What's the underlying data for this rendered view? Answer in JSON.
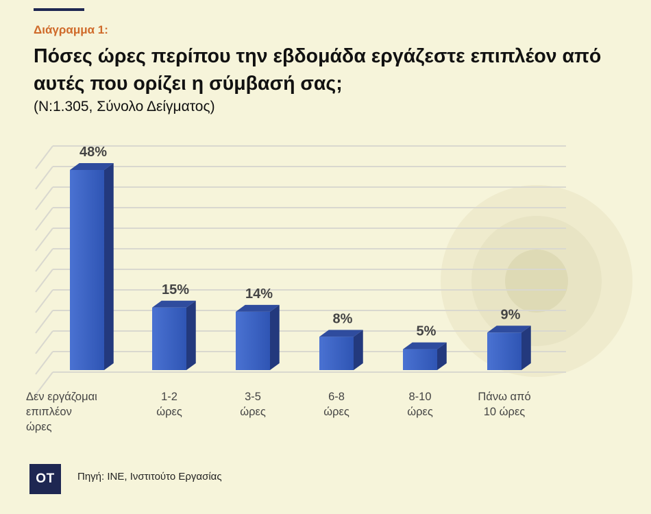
{
  "header": {
    "kicker": "Διάγραμμα 1:",
    "title": "Πόσες ώρες περίπου την εβδομάδα εργάζεστε επιπλέον από αυτές που ορίζει η σύμβασή σας;",
    "subtitle": "(N:1.305, Σύνολο Δείγματος)"
  },
  "chart_data": {
    "type": "bar",
    "categories": [
      [
        "Δεν εργάζομαι",
        "επιπλέον",
        "ώρες"
      ],
      [
        "1-2",
        "ώρες"
      ],
      [
        "3-5",
        "ώρες"
      ],
      [
        "6-8",
        "ώρες"
      ],
      [
        "8-10",
        "ώρες"
      ],
      [
        "Πάνω από",
        "10 ώρες"
      ]
    ],
    "values": [
      48,
      15,
      14,
      8,
      5,
      9
    ],
    "data_labels": [
      "48%",
      "15%",
      "14%",
      "8%",
      "5%",
      "9%"
    ],
    "ylim": [
      0,
      50
    ],
    "grid": true,
    "colors": {
      "bar_front": "#3a5fbe",
      "bar_side": "#23397d",
      "bar_top": "#2f4c9e",
      "grid": "#d9d8cf",
      "label": "#444444"
    }
  },
  "footer": {
    "logo": "OT",
    "source": "Πηγή: ΙΝΕ, Ινστιτούτο Εργασίας"
  }
}
